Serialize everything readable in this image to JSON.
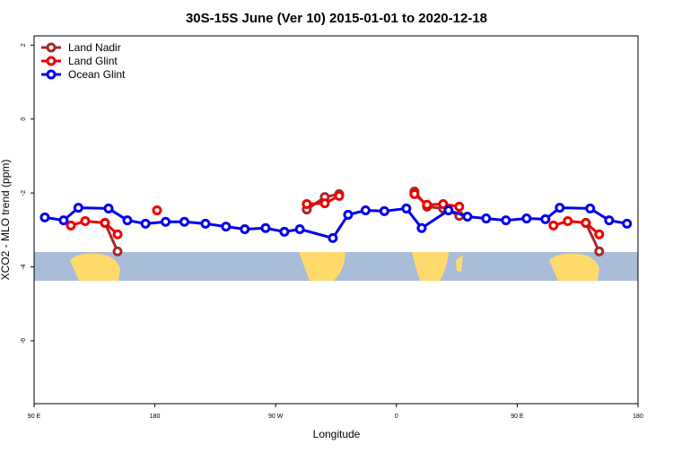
{
  "chart_data": {
    "type": "line",
    "title": "30S-15S June (Ver 10)   2015-01-01 to 2020-12-18",
    "x_label": "Longitude",
    "y_label": "XCO2 - MLO trend (ppm)",
    "xlim": [
      90,
      540
    ],
    "xticks": [
      {
        "value": 90,
        "label": "90 E"
      },
      180,
      {
        "value": 270,
        "label": "90 W"
      },
      {
        "value": 360,
        "label": "0"
      },
      {
        "value": 450,
        "label": "90 E"
      },
      {
        "value": 540,
        "label": "180"
      }
    ],
    "ylim": [
      -7.7,
      2.25
    ],
    "yticks": [
      2,
      0,
      -2,
      -4,
      -6
    ],
    "legend": "top-left",
    "series": [
      {
        "name": "Land Nadir",
        "color": "#a52a2a",
        "x": [
          142.8,
          152.2,
          null,
          293.2,
          306.6,
          317.3,
          null,
          373.4,
          382.8,
          394.8,
          406.8,
          null,
          501.1,
          511.1
        ],
        "values": [
          -2.81,
          -3.58,
          null,
          -2.45,
          -2.11,
          -2.03,
          null,
          -1.96,
          -2.37,
          -2.42,
          -2.62,
          null,
          -2.81,
          -3.58
        ]
      },
      {
        "name": "Land Glint",
        "color": "#ee0000",
        "x": [
          117.4,
          128.1,
          142.8,
          152.2,
          null,
          181.6,
          null,
          293.2,
          306.6,
          317.3,
          null,
          373.4,
          382.8,
          394.8,
          406.8,
          null,
          477,
          487.7,
          501.1,
          511.1
        ],
        "values": [
          -2.88,
          -2.76,
          -2.81,
          -3.12,
          null,
          -2.47,
          null,
          -2.3,
          -2.28,
          -2.08,
          null,
          -2.03,
          -2.32,
          -2.3,
          -2.37,
          null,
          -2.88,
          -2.76,
          -2.81,
          -3.12
        ]
      },
      {
        "name": "Ocean Glint",
        "color": "#0000ee",
        "x": [
          98,
          112,
          123,
          145.5,
          159.5,
          173,
          188,
          202,
          217.7,
          233,
          247,
          262.5,
          276.5,
          288,
          312.6,
          324,
          337,
          351,
          367.4,
          378.8,
          398.8,
          412.9,
          426.9,
          441.6,
          457,
          471,
          481.7,
          504.4,
          518.5,
          531.8
        ],
        "values": [
          -2.66,
          -2.74,
          -2.4,
          -2.42,
          -2.74,
          -2.83,
          -2.78,
          -2.78,
          -2.83,
          -2.91,
          -2.98,
          -2.95,
          -3.05,
          -2.98,
          -3.22,
          -2.59,
          -2.47,
          -2.49,
          -2.42,
          -2.95,
          -2.47,
          -2.64,
          -2.69,
          -2.74,
          -2.69,
          -2.71,
          -2.4,
          -2.42,
          -2.74,
          -2.83
        ]
      }
    ]
  }
}
